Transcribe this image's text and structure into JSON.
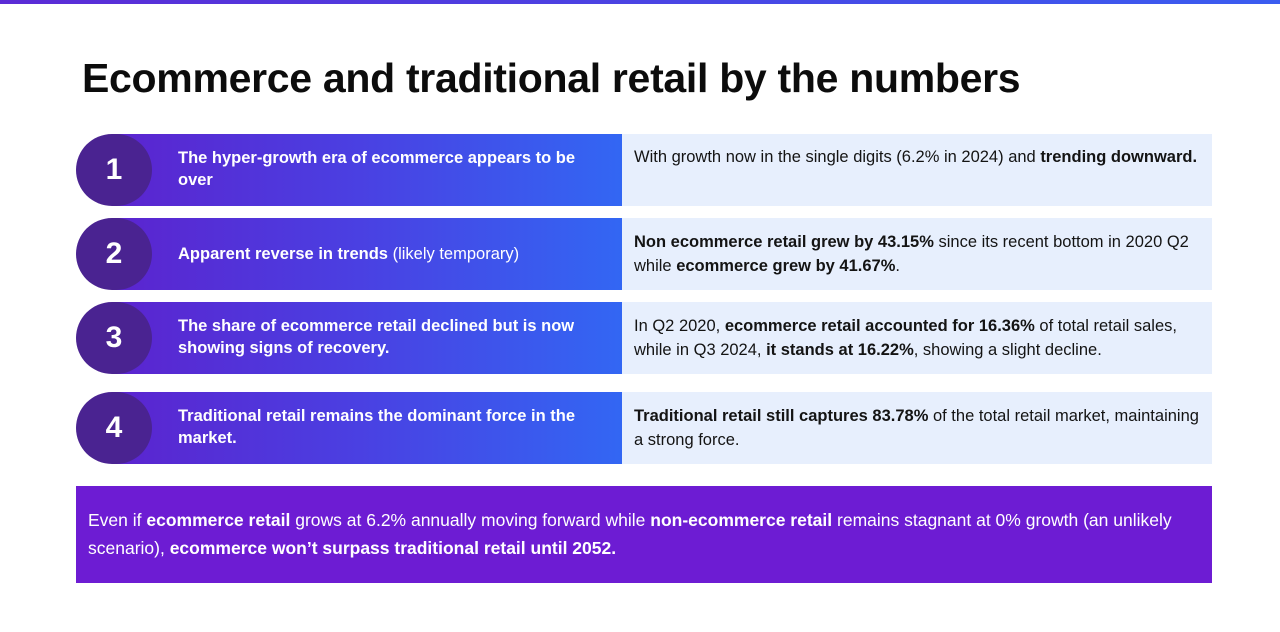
{
  "title": "Ecommerce and traditional retail by the numbers",
  "colors": {
    "accent_bar_start": "#5b24cf",
    "accent_bar_end": "#2f6cf6",
    "number_circle": "#4a2391",
    "description_bg": "#e7effd",
    "footer_bg": "#6d1cd3"
  },
  "rows": [
    {
      "number": "1",
      "label": [
        {
          "t": "The hyper-growth era of ecommerce appears  to be over",
          "b": true
        }
      ],
      "description": [
        {
          "t": "With growth now in the single digits (6.2% in 2024) and ",
          "b": false
        },
        {
          "t": "trending downward.",
          "b": true
        }
      ]
    },
    {
      "number": "2",
      "label": [
        {
          "t": "Apparent reverse in trends",
          "b": true
        },
        {
          "t": " (likely temporary)",
          "b": false
        }
      ],
      "description": [
        {
          "t": "Non ecommerce retail grew by 43.15%",
          "b": true
        },
        {
          "t": " since its recent bottom in 2020 Q2 while ",
          "b": false
        },
        {
          "t": "ecommerce grew by 41.67%",
          "b": true
        },
        {
          "t": ".",
          "b": false
        }
      ]
    },
    {
      "number": "3",
      "label": [
        {
          "t": "The share of ecommerce retail declined but is now showing signs of recovery.",
          "b": true
        }
      ],
      "description": [
        {
          "t": "In Q2 2020, ",
          "b": false
        },
        {
          "t": "ecommerce retail accounted for 16.36%",
          "b": true
        },
        {
          "t": " of total retail sales, while in Q3 2024, ",
          "b": false
        },
        {
          "t": "it stands at 16.22%",
          "b": true
        },
        {
          "t": ", showing a slight decline.",
          "b": false
        }
      ]
    },
    {
      "number": "4",
      "label": [
        {
          "t": "Traditional retail remains the dominant force in the market.",
          "b": true
        }
      ],
      "description": [
        {
          "t": "Traditional retail still captures 83.78%",
          "b": true
        },
        {
          "t": " of the total retail market, maintaining a strong force.",
          "b": false
        }
      ]
    }
  ],
  "footer": [
    {
      "t": "Even if ",
      "b": false
    },
    {
      "t": "ecommerce retail",
      "b": true
    },
    {
      "t": " grows at 6.2% annually moving forward while ",
      "b": false
    },
    {
      "t": "non-ecommerce retail",
      "b": true
    },
    {
      "t": " remains stagnant at 0% growth (an unlikely scenario), ",
      "b": false
    },
    {
      "t": "ecommerce won’t surpass traditional retail until 2052.",
      "b": true
    }
  ]
}
